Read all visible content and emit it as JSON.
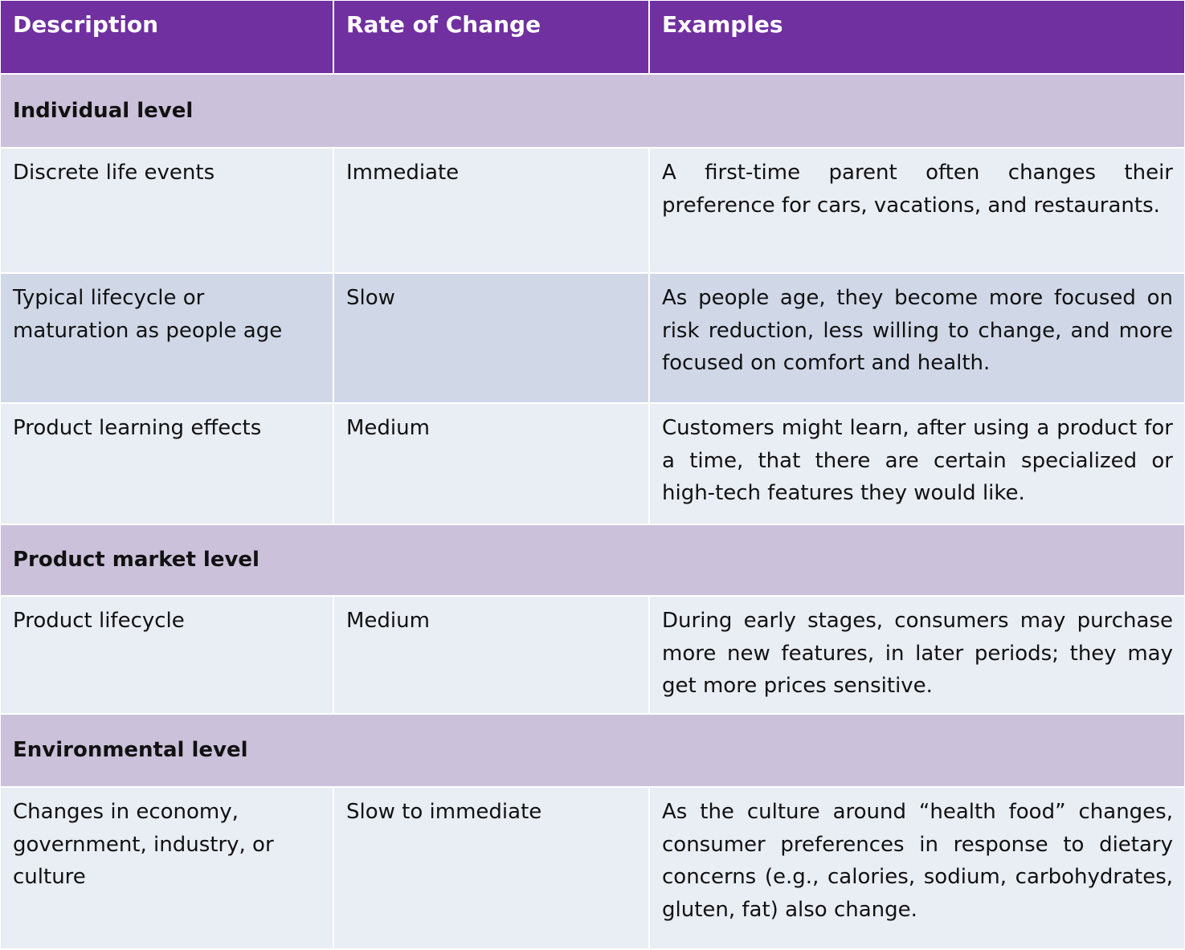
{
  "headers": [
    "Description",
    "Rate of Change",
    "Examples"
  ],
  "groups": [
    {
      "label": "Individual level",
      "rows": [
        {
          "description": "Discrete life events",
          "rate": "Immediate",
          "example": "A first-time parent often changes their preference for cars, vacations, and restaurants."
        },
        {
          "description": "Typical lifecycle or maturation as people age",
          "rate": "Slow",
          "example": "As people age, they become more focused on risk reduction, less willing to change, and more focused on comfort and health."
        },
        {
          "description": "Product learning effects",
          "rate": "Medium",
          "example": "Customers might learn, after using a product for a time, that there are certain specialized or high-tech features they would like."
        }
      ]
    },
    {
      "label": "Product market level",
      "rows": [
        {
          "description": "Product lifecycle",
          "rate": "Medium",
          "example": "During early stages, consumers may purchase more new features, in later periods; they may get more prices sensitive."
        }
      ]
    },
    {
      "label": "Environmental level",
      "rows": [
        {
          "description": "Changes in economy, government, industry, or culture",
          "rate": "Slow to immediate",
          "example": "As the culture around “health food” changes, consumer preferences in response to dietary concerns (e.g., calories, sodium, carbohydrates, gluten, fat) also change."
        }
      ]
    }
  ],
  "colors": {
    "header": "#7030A0",
    "group": "#CBC1DA",
    "row": "#E9EDF4",
    "row_alt": "#D0D8E8"
  }
}
